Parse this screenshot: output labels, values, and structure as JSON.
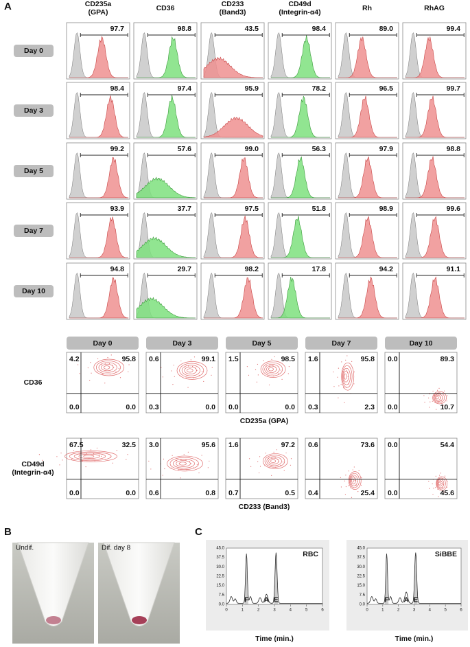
{
  "panel_a": {
    "label": "A",
    "columns": [
      [
        "CD235a",
        "(GPA)"
      ],
      [
        "CD36"
      ],
      [
        "CD233",
        "(Band3)"
      ],
      [
        "CD49d",
        "(Integrin-α4)"
      ],
      [
        "Rh"
      ],
      [
        "RhAG"
      ]
    ],
    "rows": [
      {
        "day": "Day 0",
        "values": [
          "97.7",
          "98.8",
          "43.5",
          "98.4",
          "89.0",
          "99.4"
        ]
      },
      {
        "day": "Day 3",
        "values": [
          "98.4",
          "97.4",
          "95.9",
          "78.2",
          "96.5",
          "99.7"
        ]
      },
      {
        "day": "Day 5",
        "values": [
          "99.2",
          "57.6",
          "99.0",
          "56.3",
          "97.9",
          "98.8"
        ]
      },
      {
        "day": "Day 7",
        "values": [
          "93.9",
          "37.7",
          "97.5",
          "51.8",
          "98.9",
          "99.6"
        ]
      },
      {
        "day": "Day 10",
        "values": [
          "94.8",
          "29.7",
          "98.2",
          "17.8",
          "94.2",
          "91.1"
        ]
      }
    ],
    "contour": {
      "days": [
        "Day 0",
        "Day 3",
        "Day 5",
        "Day 7",
        "Day 10"
      ],
      "rows": [
        {
          "label": [
            "CD36"
          ],
          "x_label": "CD235a (GPA)",
          "quadrants": [
            [
              "4.2",
              "95.8",
              "0.0",
              "0.0"
            ],
            [
              "0.6",
              "99.1",
              "0.3",
              "0.0"
            ],
            [
              "1.5",
              "98.5",
              "0.0",
              "0.0"
            ],
            [
              "1.6",
              "95.8",
              "0.3",
              "2.3"
            ],
            [
              "0.0",
              "89.3",
              "0.0",
              "10.7"
            ]
          ]
        },
        {
          "label": [
            "CD49d",
            "(Integrin-α4)"
          ],
          "x_label": "CD233 (Band3)",
          "quadrants": [
            [
              "67.5",
              "32.5",
              "0.0",
              "0.0"
            ],
            [
              "3.0",
              "95.6",
              "0.6",
              "0.8"
            ],
            [
              "1.6",
              "97.2",
              "0.7",
              "0.5"
            ],
            [
              "0.6",
              "73.6",
              "0.4",
              "25.4"
            ],
            [
              "0.0",
              "54.4",
              "0.0",
              "45.6"
            ]
          ]
        }
      ]
    }
  },
  "panel_b": {
    "label": "B",
    "images": [
      "Undif.",
      "Dif. day 8"
    ]
  },
  "panel_c": {
    "label": "C",
    "plots": [
      "RBC",
      "SiBBE"
    ],
    "peaks": [
      "F",
      "A",
      "E"
    ],
    "x_label": "Time (min.)",
    "xticks": [
      "0",
      "1",
      "2",
      "3",
      "4",
      "5",
      "6"
    ],
    "yticks": [
      "0.0",
      "7.5",
      "15.0",
      "22.5",
      "30.0",
      "37.5",
      "45.0"
    ]
  }
}
